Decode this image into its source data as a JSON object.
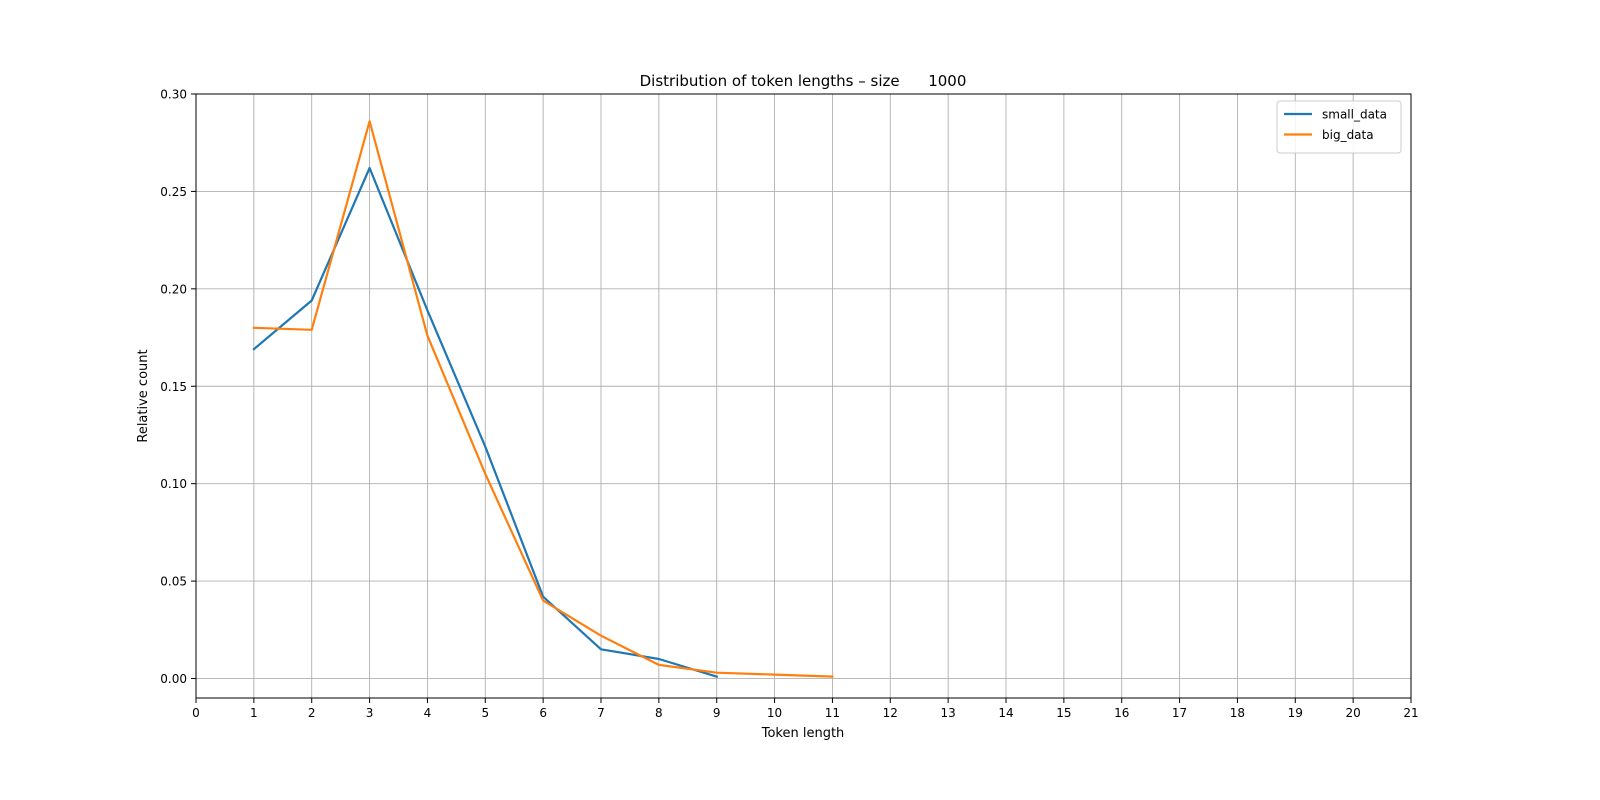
{
  "chart_data": {
    "type": "line",
    "title": "Distribution of token lengths – size      1000",
    "xlabel": "Token length",
    "ylabel": "Relative count",
    "xlim": [
      0,
      21
    ],
    "ylim": [
      -0.01,
      0.3
    ],
    "xticks": [
      0,
      1,
      2,
      3,
      4,
      5,
      6,
      7,
      8,
      9,
      10,
      11,
      12,
      13,
      14,
      15,
      16,
      17,
      18,
      19,
      20,
      21
    ],
    "yticks": [
      0.0,
      0.05,
      0.1,
      0.15,
      0.2,
      0.25,
      0.3
    ],
    "ytick_labels": [
      "0.00",
      "0.05",
      "0.10",
      "0.15",
      "0.20",
      "0.25",
      "0.30"
    ],
    "grid": true,
    "legend_position": "top-right",
    "series": [
      {
        "name": "small_data",
        "color": "#1f77b4",
        "x": [
          1,
          2,
          3,
          4,
          5,
          6,
          7,
          8,
          9
        ],
        "y": [
          0.169,
          0.194,
          0.262,
          0.189,
          0.119,
          0.042,
          0.015,
          0.01,
          0.001
        ]
      },
      {
        "name": "big_data",
        "color": "#ff7f0e",
        "x": [
          1,
          2,
          3,
          4,
          5,
          6,
          7,
          8,
          9,
          10,
          11
        ],
        "y": [
          0.18,
          0.179,
          0.286,
          0.176,
          0.105,
          0.04,
          0.022,
          0.007,
          0.003,
          0.002,
          0.001
        ]
      }
    ]
  }
}
